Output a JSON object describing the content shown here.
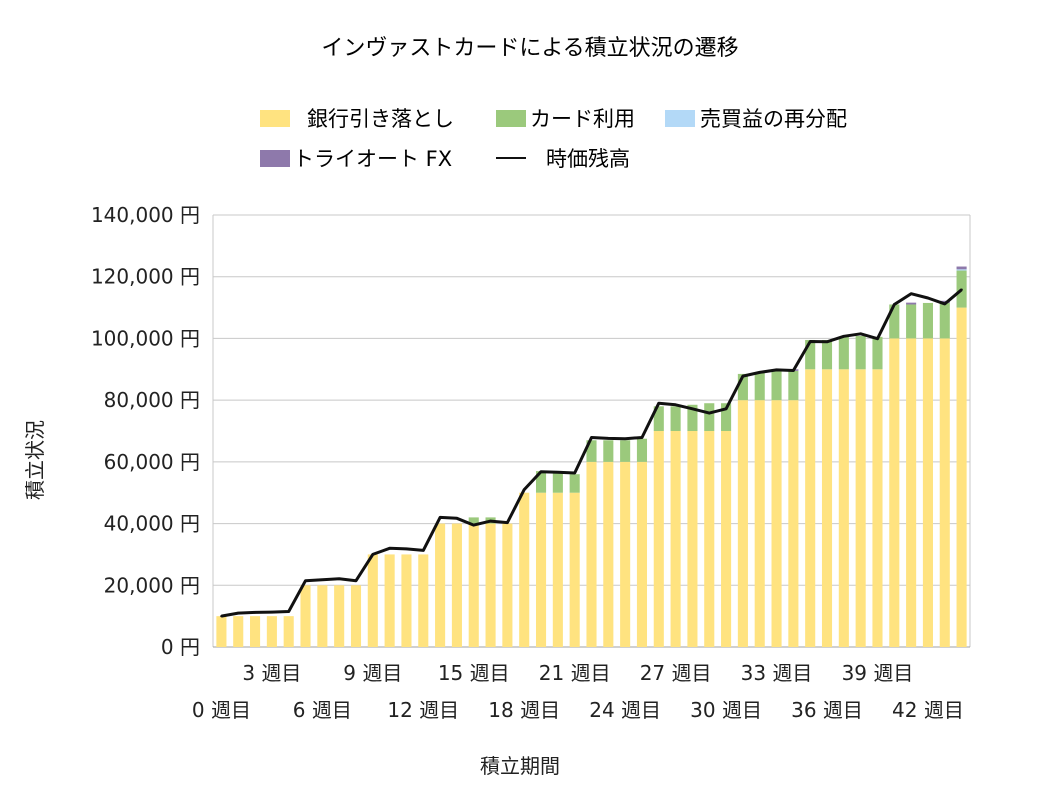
{
  "chart_data": {
    "type": "bar",
    "stacked": true,
    "title": "インヴァストカードによる積立状況の遷移",
    "xlabel": "積立期間",
    "ylabel": "積立状況",
    "ylim": [
      0,
      140000
    ],
    "y_ticks": [
      0,
      20000,
      40000,
      60000,
      80000,
      100000,
      120000,
      140000
    ],
    "y_tick_labels": [
      "0 円",
      "20,000 円",
      "40,000 円",
      "60,000 円",
      "80,000 円",
      "100,000 円",
      "120,000 円",
      "140,000 円"
    ],
    "x_tick_labels_upper": [
      {
        "week": 3,
        "label": "3 週目"
      },
      {
        "week": 9,
        "label": "9 週目"
      },
      {
        "week": 15,
        "label": "15 週目"
      },
      {
        "week": 21,
        "label": "21 週目"
      },
      {
        "week": 27,
        "label": "27 週目"
      },
      {
        "week": 33,
        "label": "33 週目"
      },
      {
        "week": 39,
        "label": "39 週目"
      }
    ],
    "x_tick_labels_lower": [
      {
        "week": 0,
        "label": "0 週目"
      },
      {
        "week": 6,
        "label": "6 週目"
      },
      {
        "week": 12,
        "label": "12 週目"
      },
      {
        "week": 18,
        "label": "18 週目"
      },
      {
        "week": 24,
        "label": "24 週目"
      },
      {
        "week": 30,
        "label": "30 週目"
      },
      {
        "week": 36,
        "label": "36 週目"
      },
      {
        "week": 42,
        "label": "42 週目"
      }
    ],
    "grid": true,
    "legend_position": "top",
    "x": [
      0,
      1,
      2,
      3,
      4,
      5,
      6,
      7,
      8,
      9,
      10,
      11,
      12,
      13,
      14,
      15,
      16,
      17,
      18,
      19,
      20,
      21,
      22,
      23,
      24,
      25,
      26,
      27,
      28,
      29,
      30,
      31,
      32,
      33,
      34,
      35,
      36,
      37,
      38,
      39,
      40,
      41,
      42,
      43,
      44
    ],
    "series": [
      {
        "name": "銀行引き落とし",
        "color": "#ffe380",
        "kind": "bar",
        "values": [
          10000,
          10000,
          10000,
          10000,
          10000,
          20000,
          20000,
          20000,
          20000,
          30000,
          30000,
          30000,
          30000,
          40000,
          40000,
          40000,
          40000,
          40000,
          50000,
          50000,
          50000,
          50000,
          60000,
          60000,
          60000,
          60000,
          70000,
          70000,
          70000,
          70000,
          70000,
          80000,
          80000,
          80000,
          80000,
          90000,
          90000,
          90000,
          90000,
          90000,
          100000,
          100000,
          100000,
          100000,
          110000
        ]
      },
      {
        "name": "カード利用",
        "color": "#9bc97c",
        "kind": "bar",
        "values": [
          0,
          0,
          0,
          0,
          0,
          0,
          0,
          0,
          0,
          0,
          0,
          0,
          0,
          0,
          0,
          2000,
          2000,
          0,
          0,
          7000,
          7000,
          6000,
          7000,
          7000,
          7000,
          7500,
          8000,
          8000,
          8500,
          9000,
          9000,
          8500,
          9000,
          9500,
          9500,
          9500,
          9500,
          10500,
          10800,
          10500,
          11000,
          11000,
          11500,
          11500,
          12000
        ]
      },
      {
        "name": "売買益の再分配",
        "color": "#b3d9f7",
        "kind": "bar",
        "values": [
          0,
          0,
          0,
          0,
          0,
          0,
          0,
          0,
          0,
          0,
          0,
          0,
          0,
          0,
          0,
          0,
          0,
          0,
          0,
          0,
          0,
          0,
          0,
          0,
          0,
          0,
          0,
          0,
          0,
          0,
          0,
          0,
          0,
          0,
          0,
          0,
          0,
          0,
          0,
          0,
          0,
          0,
          0,
          0,
          400
        ]
      },
      {
        "name": "トライオート FX",
        "color": "#8e79ab",
        "kind": "bar",
        "values": [
          0,
          0,
          0,
          0,
          0,
          0,
          0,
          0,
          0,
          0,
          0,
          0,
          0,
          0,
          0,
          0,
          0,
          0,
          0,
          0,
          0,
          0,
          0,
          0,
          0,
          0,
          0,
          0,
          0,
          0,
          0,
          0,
          0,
          0,
          500,
          0,
          0,
          0,
          0,
          0,
          0,
          600,
          0,
          700,
          900
        ]
      },
      {
        "name": "時価残高",
        "color": "#111111",
        "kind": "line",
        "values": [
          10000,
          11000,
          11200,
          11300,
          11500,
          21500,
          21800,
          22100,
          21500,
          30000,
          32000,
          31800,
          31300,
          42000,
          41700,
          39500,
          40800,
          40300,
          51000,
          56800,
          56600,
          56400,
          67900,
          67600,
          67500,
          67900,
          79000,
          78500,
          77200,
          75800,
          77200,
          87800,
          89000,
          89800,
          89600,
          99000,
          98900,
          100700,
          101500,
          99900,
          111000,
          114500,
          113100,
          111200,
          115800
        ]
      }
    ]
  }
}
